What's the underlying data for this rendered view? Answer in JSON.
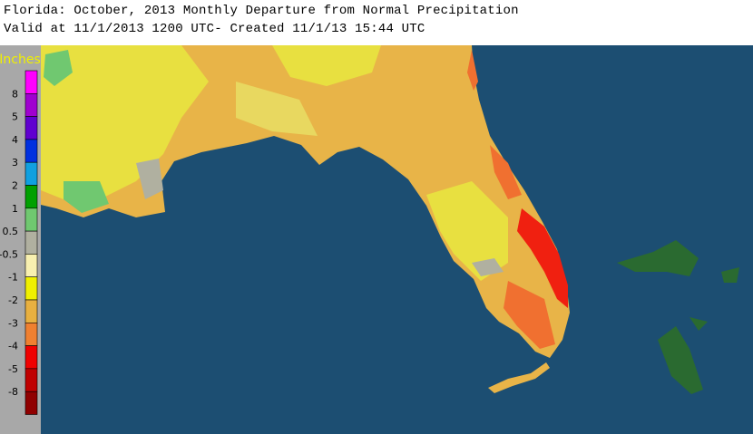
{
  "header": {
    "title": "Florida: October, 2013 Monthly Departure from Normal Precipitation",
    "subtitle": "Valid at 11/1/2013 1200 UTC- Created 11/1/13 15:44 UTC"
  },
  "legend": {
    "title": "Inches",
    "labels": [
      "8",
      "5",
      "4",
      "3",
      "2",
      "1",
      "0.5",
      "-0.5",
      "-1",
      "-2",
      "-3",
      "-4",
      "-5",
      "-8"
    ],
    "colors": [
      "#ff00ff",
      "#a000d0",
      "#6000d0",
      "#0030e0",
      "#10a0e0",
      "#00a000",
      "#70c870",
      "#b0b0a0",
      "#f8f0b0",
      "#f0f000",
      "#e8b040",
      "#f08030",
      "#f00000",
      "#c00000",
      "#900000"
    ]
  }
}
